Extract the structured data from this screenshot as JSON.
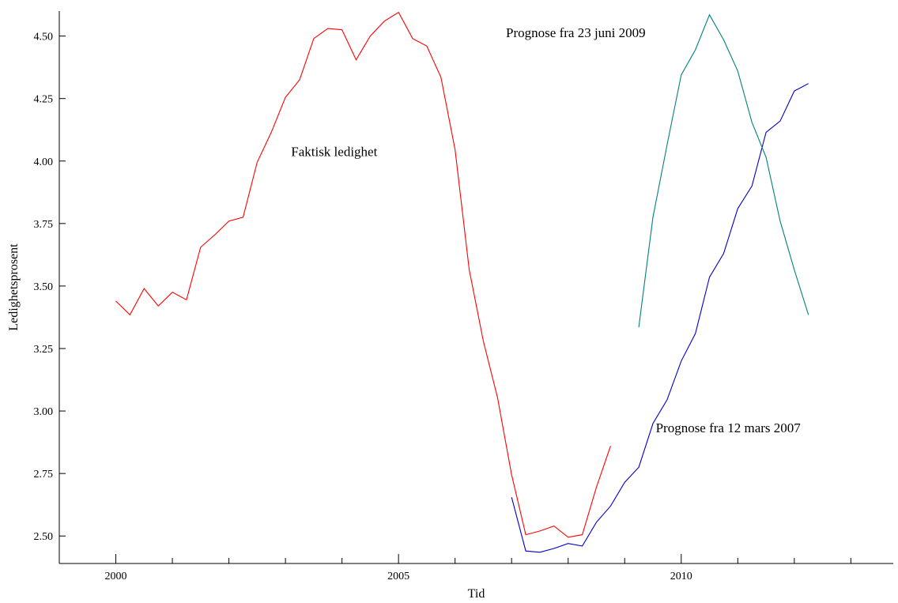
{
  "chart_data": {
    "type": "line",
    "title": "",
    "xlabel": "Tid",
    "ylabel": "Ledighetsprosent",
    "xlim": [
      1999.0,
      2013.75
    ],
    "ylim": [
      2.39,
      4.6
    ],
    "x_major_ticks": [
      2000,
      2005,
      2010
    ],
    "x_minor_step": 1,
    "x_tick_labels": [
      "2000",
      "2005",
      "2010"
    ],
    "y_ticks": [
      2.5,
      2.75,
      3.0,
      3.25,
      3.5,
      3.75,
      4.0,
      4.25,
      4.5
    ],
    "y_tick_labels": [
      "2.50",
      "2.75",
      "3.00",
      "3.25",
      "3.50",
      "3.75",
      "4.00",
      "4.25",
      "4.50"
    ],
    "grid": false,
    "series": [
      {
        "color": "#ff0000",
        "x": [
          2000.0,
          2000.25,
          2000.5,
          2000.75,
          2001.0,
          2001.25,
          2001.5,
          2001.75,
          2002.0,
          2002.25,
          2002.5,
          2002.75,
          2003.0,
          2003.25,
          2003.5,
          2003.75,
          2004.0,
          2004.25,
          2004.5,
          2004.75,
          2005.0,
          2005.25,
          2005.5,
          2005.75,
          2006.0,
          2006.25,
          2006.5,
          2006.75,
          2007.0,
          2007.25,
          2007.5,
          2007.75,
          2008.0,
          2008.25,
          2008.5,
          2008.75
        ],
        "values": [
          3.44,
          3.385,
          3.49,
          3.42,
          3.475,
          3.445,
          3.655,
          3.705,
          3.76,
          3.775,
          3.995,
          4.115,
          4.255,
          4.325,
          4.49,
          4.53,
          4.525,
          4.405,
          4.5,
          4.56,
          4.595,
          4.49,
          4.46,
          4.335,
          4.045,
          3.565,
          3.28,
          3.055,
          2.745,
          2.505,
          2.52,
          2.54,
          2.495,
          2.505,
          2.695,
          2.86
        ]
      },
      {
        "color": "#0000cc",
        "x": [
          2007.0,
          2007.25,
          2007.5,
          2007.75,
          2008.0,
          2008.25,
          2008.5,
          2008.75,
          2009.0,
          2009.25,
          2009.5,
          2009.75,
          2010.0,
          2010.25,
          2010.5,
          2010.75,
          2011.0,
          2011.25,
          2011.5,
          2011.75,
          2012.0,
          2012.25
        ],
        "values": [
          2.655,
          2.44,
          2.435,
          2.45,
          2.47,
          2.46,
          2.555,
          2.62,
          2.715,
          2.775,
          2.95,
          3.045,
          3.2,
          3.31,
          3.535,
          3.63,
          3.81,
          3.9,
          4.115,
          4.16,
          4.28,
          4.31
        ]
      },
      {
        "color": "#008080",
        "x": [
          2009.25,
          2009.5,
          2009.75,
          2010.0,
          2010.25,
          2010.5,
          2010.75,
          2011.0,
          2011.25,
          2011.5,
          2011.75,
          2012.0,
          2012.25
        ],
        "values": [
          3.335,
          3.775,
          4.065,
          4.345,
          4.445,
          4.585,
          4.485,
          4.36,
          4.155,
          4.015,
          3.76,
          3.565,
          3.385
        ]
      }
    ],
    "annotations": [
      {
        "text": "Faktisk ledighet",
        "x": 2003.1,
        "y": 4.02
      },
      {
        "text": "Prognose fra 23 juni 2009",
        "x": 2006.9,
        "y": 4.495
      },
      {
        "text": "Prognose fra 12 mars 2007",
        "x": 2009.55,
        "y": 2.915
      }
    ]
  }
}
